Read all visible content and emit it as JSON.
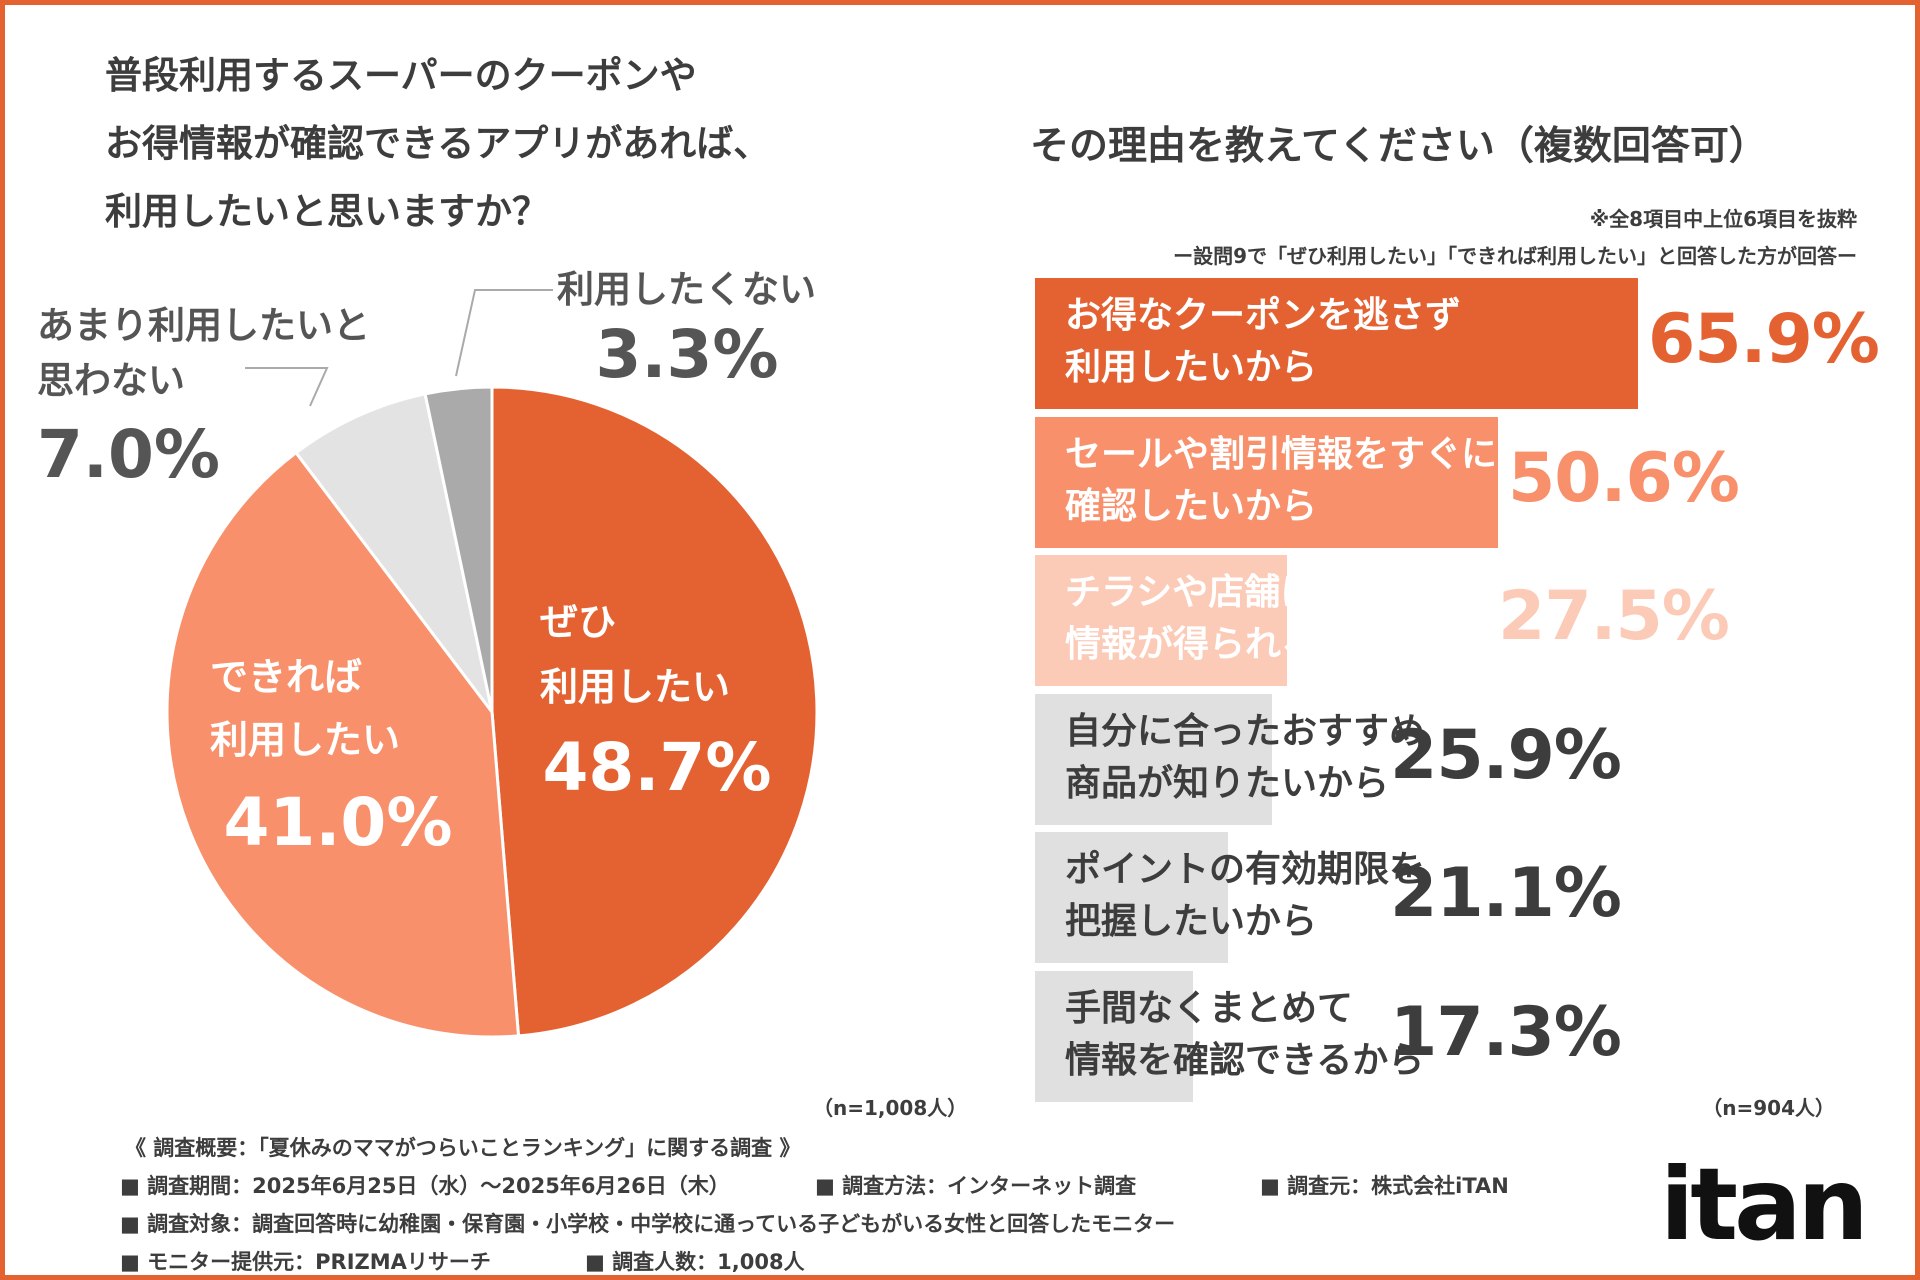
{
  "left": {
    "question_lines": [
      "普段利用するスーパーのクーポンや",
      "お得情報が確認できるアプリがあれば、",
      "利用したいと思いますか？"
    ],
    "sample": "（n=1,008人）"
  },
  "right": {
    "title": "その理由を教えてください（複数回答可）",
    "note1": "※全8項目中上位6項目を抜粋",
    "note2": "ー設問9で「ぜひ利用したい」「できれば利用したい」と回答した方が回答ー",
    "sample": "（n=904人）"
  },
  "colors": {
    "dark_orange": "#e46232",
    "light_orange": "#f8906b",
    "pale_orange": "#fbcbb7",
    "light_gray": "#e0e0e0",
    "mid_gray": "#aaaaaa",
    "text_gray": "#3d3d3d"
  },
  "chart_data": [
    {
      "type": "pie",
      "slices": [
        {
          "label_lines": [
            "ぜひ",
            "利用したい"
          ],
          "value": 48.7,
          "display": "48.7%",
          "color": "#e46232"
        },
        {
          "label_lines": [
            "できれば",
            "利用したい"
          ],
          "value": 41.0,
          "display": "41.0%",
          "color": "#f8906b"
        },
        {
          "label_lines": [
            "あまり利用したいと",
            "思わない"
          ],
          "value": 7.0,
          "display": "7.0%",
          "color": "#e3e3e3"
        },
        {
          "label_lines": [
            "利用したくない"
          ],
          "value": 3.3,
          "display": "3.3%",
          "color": "#aaaaaa"
        }
      ]
    },
    {
      "type": "bar",
      "orientation": "horizontal",
      "xlim": [
        0,
        100
      ],
      "bars": [
        {
          "label_lines": [
            "お得なクーポンを逃さず",
            "利用したいから"
          ],
          "value": 65.9,
          "display": "65.9%",
          "color": "#e46232",
          "label_color": "#ffffff",
          "value_color": "#e46232"
        },
        {
          "label_lines": [
            "セールや割引情報をすぐに",
            "確認したいから"
          ],
          "value": 50.6,
          "display": "50.6%",
          "color": "#f8906b",
          "label_color": "#ffffff",
          "value_color": "#f8906b"
        },
        {
          "label_lines": [
            "チラシや店舗に行かなくても",
            "情報が得られるから"
          ],
          "value": 27.5,
          "display": "27.5%",
          "color": "#fbcbb7",
          "label_color": "#ffffff",
          "value_color": "#fbcbb7"
        },
        {
          "label_lines": [
            "自分に合ったおすすめ",
            "商品が知りたいから"
          ],
          "value": 25.9,
          "display": "25.9%",
          "color": "#e0e0e0",
          "label_color": "#3d3d3d",
          "value_color": "#3d3d3d"
        },
        {
          "label_lines": [
            "ポイントの有効期限を",
            "把握したいから"
          ],
          "value": 21.1,
          "display": "21.1%",
          "color": "#e0e0e0",
          "label_color": "#3d3d3d",
          "value_color": "#3d3d3d"
        },
        {
          "label_lines": [
            "手間なくまとめて",
            "情報を確認できるから"
          ],
          "value": 17.3,
          "display": "17.3%",
          "color": "#e0e0e0",
          "label_color": "#3d3d3d",
          "value_color": "#3d3d3d"
        }
      ]
    }
  ],
  "footer": {
    "heading": "《 調査概要：「夏休みのママがつらいことランキング」に関する調査 》",
    "period": "■ 調査期間：2025年6月25日（水）～2025年6月26日（木）",
    "method": "■ 調査方法：インターネット調査",
    "source": "■ 調査元：株式会社iTAN",
    "target": "■ 調査対象：調査回答時に幼稚園・保育園・小学校・中学校に通っている子どもがいる女性と回答したモニター",
    "provider": "■ モニター提供元：PRIZMAリサーチ",
    "count": "■ 調査人数：1,008人",
    "logo": "itan"
  }
}
